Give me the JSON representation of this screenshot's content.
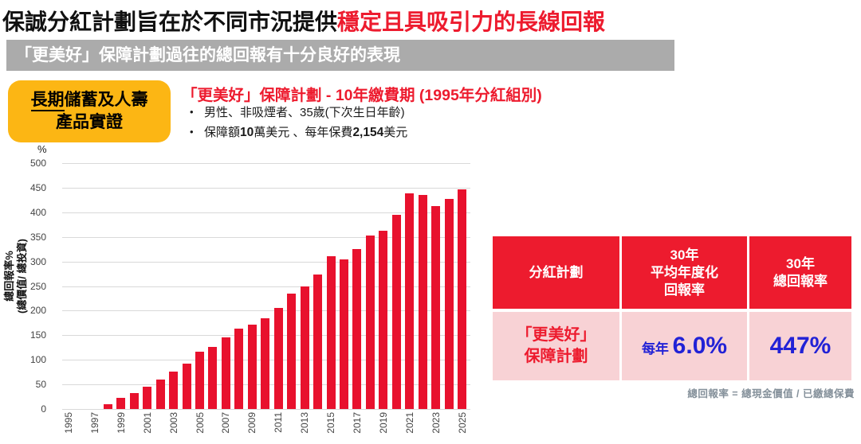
{
  "slide": {
    "title_black": "保誠分紅計劃旨在於不同市況提供",
    "title_red": "穩定且具吸引力的長線回報",
    "subtitle": "「更美好」保障計劃過往的總回報有十分良好的表現",
    "badge": {
      "line1_underlined": "長期",
      "line1_rest": "儲蓄及人壽",
      "line2": "產品實證"
    },
    "plan": {
      "heading": "「更美好」保障計劃 - 10年繳費期 (1995年分紅組別)",
      "bullet1": "男性、非吸煙者、35歲(下次生日年齡)",
      "bullet2": {
        "p1": "保障額",
        "n1": "10",
        "p2": "萬美元 、每年保費",
        "n2": "2,154",
        "p3": "美元"
      }
    },
    "footnote": "總回報率 = 總現金價值 / 已繳總保費"
  },
  "chart_data": {
    "type": "bar",
    "title": "",
    "unit_label": "%",
    "ylabel_lines": [
      "總回報率%",
      "(總價值/ 總投資)"
    ],
    "ylim": [
      0,
      500
    ],
    "ytick_step": 50,
    "grid": true,
    "legend": "none",
    "bar_color": "#E8112D",
    "years": [
      1995,
      1996,
      1997,
      1998,
      1999,
      2000,
      2001,
      2002,
      2003,
      2004,
      2005,
      2006,
      2007,
      2008,
      2009,
      2010,
      2011,
      2012,
      2013,
      2014,
      2015,
      2016,
      2017,
      2018,
      2019,
      2020,
      2021,
      2022,
      2023,
      2024,
      2025
    ],
    "values": [
      0,
      0,
      0,
      10,
      22,
      33,
      46,
      60,
      76,
      93,
      116,
      126,
      145,
      163,
      171,
      185,
      206,
      235,
      249,
      274,
      311,
      305,
      326,
      353,
      362,
      395,
      438,
      436,
      413,
      427,
      447
    ],
    "xtick_labels": [
      "1995",
      "1997",
      "1999",
      "2001",
      "2003",
      "2005",
      "2007",
      "2009",
      "2011",
      "2013",
      "2015",
      "2017",
      "2019",
      "2021",
      "2023",
      "2025"
    ]
  },
  "table": {
    "header": {
      "c1": "分紅計劃",
      "c2_lines": [
        "30年",
        "平均年度化",
        "回報率"
      ],
      "c3_lines": [
        "30年",
        "總回報率"
      ]
    },
    "row": {
      "plan_l1": "「更美好」",
      "plan_l2": "保障計劃",
      "annual_prefix": "每年 ",
      "annual_value": "6.0%",
      "total_value": "447%"
    }
  },
  "colors": {
    "red": "#ED1B2E",
    "bar_red": "#E8112D",
    "pink": "#F8D2D5",
    "yellow": "#FCB614",
    "gray_bar": "#ABABAB",
    "blue": "#2222D6",
    "footnote_gray": "#84909A"
  }
}
